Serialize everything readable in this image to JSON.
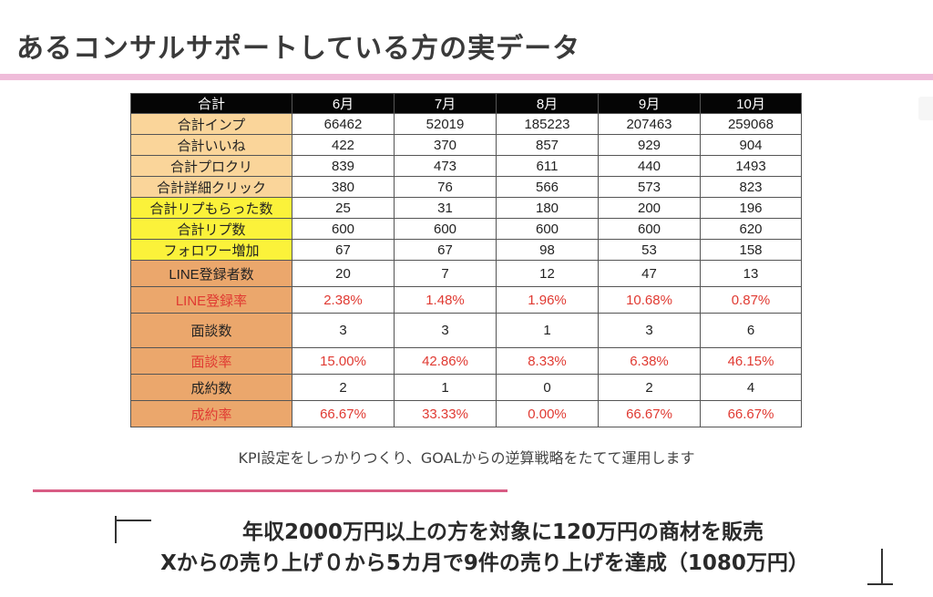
{
  "header": {
    "title": "あるコンサルサポートしている方の実データ"
  },
  "table": {
    "corner": "合計",
    "months": [
      "6月",
      "7月",
      "8月",
      "9月",
      "10月"
    ],
    "rows": [
      {
        "label": "合計インプ",
        "values": [
          "66462",
          "52019",
          "185223",
          "207463",
          "259068"
        ]
      },
      {
        "label": "合計いいね",
        "values": [
          "422",
          "370",
          "857",
          "929",
          "904"
        ]
      },
      {
        "label": "合計プロクリ",
        "values": [
          "839",
          "473",
          "611",
          "440",
          "1493"
        ]
      },
      {
        "label": "合計詳細クリック",
        "values": [
          "380",
          "76",
          "566",
          "573",
          "823"
        ]
      },
      {
        "label": "合計リプもらった数",
        "values": [
          "25",
          "31",
          "180",
          "200",
          "196"
        ]
      },
      {
        "label": "合計リプ数",
        "values": [
          "600",
          "600",
          "600",
          "600",
          "620"
        ]
      },
      {
        "label": "フォロワー増加",
        "values": [
          "67",
          "67",
          "98",
          "53",
          "158"
        ]
      },
      {
        "label": "LINE登録者数",
        "values": [
          "20",
          "7",
          "12",
          "47",
          "13"
        ]
      },
      {
        "label": "LINE登録率",
        "values": [
          "2.38%",
          "1.48%",
          "1.96%",
          "10.68%",
          "0.87%"
        ]
      },
      {
        "label": "面談数",
        "values": [
          "3",
          "3",
          "1",
          "3",
          "6"
        ]
      },
      {
        "label": "面談率",
        "values": [
          "15.00%",
          "42.86%",
          "8.33%",
          "6.38%",
          "46.15%"
        ]
      },
      {
        "label": "成約数",
        "values": [
          "2",
          "1",
          "0",
          "2",
          "4"
        ]
      },
      {
        "label": "成約率",
        "values": [
          "66.67%",
          "33.33%",
          "0.00%",
          "66.67%",
          "66.67%"
        ]
      }
    ],
    "colors": {
      "header_bg": "#050505",
      "label_engagement": "#fad59a",
      "label_reply": "#fbf23a",
      "label_conversion": "#eba76c",
      "rate_text": "#e03a32"
    }
  },
  "caption": "KPI設定をしっかりつくり、GOALからの逆算戦略をたてて運用します",
  "headline": {
    "line1": "年収2000万円以上の方を対象に120万円の商材を販売",
    "line2": "Xからの売り上げ０から5カ月で9件の売り上げを達成（1080万円）"
  },
  "accent_colors": {
    "title_rule": "#efbcd9",
    "divider": "#d85c84"
  }
}
